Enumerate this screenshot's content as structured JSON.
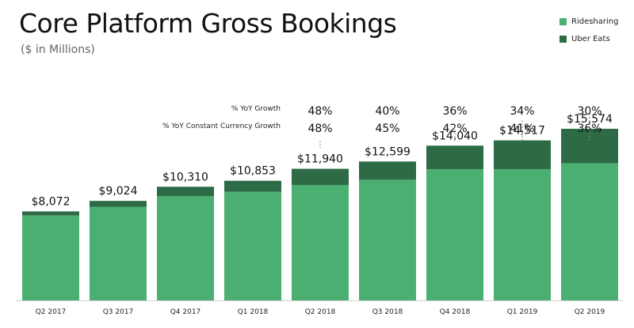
{
  "title": "Core Platform Gross Bookings",
  "subtitle": "($ in Millions)",
  "legend": [
    {
      "label": "Ridesharing",
      "color": "#4caf72"
    },
    {
      "label": "Uber Eats",
      "color": "#2c6b46"
    }
  ],
  "metrics": {
    "yoy_growth_label": "% YoY Growth",
    "yoy_cc_label": "% YoY Constant Currency Growth"
  },
  "chart_data": {
    "type": "bar",
    "stacked": true,
    "categories": [
      "Q2 2017",
      "Q3 2017",
      "Q4 2017",
      "Q1 2018",
      "Q2 2018",
      "Q3 2018",
      "Q4 2018",
      "Q1 2019",
      "Q2 2019"
    ],
    "totals": [
      "$8,072",
      "$9,024",
      "$10,310",
      "$10,853",
      "$11,940",
      "$12,599",
      "$14,040",
      "$14,517",
      "$15,574"
    ],
    "total_values": [
      8072,
      9024,
      10310,
      10853,
      11940,
      12599,
      14040,
      14517,
      15574
    ],
    "series": [
      {
        "name": "Ridesharing",
        "color": "#4caf72",
        "values": [
          7700,
          8500,
          9450,
          9850,
          10450,
          10950,
          11900,
          11900,
          12450
        ]
      },
      {
        "name": "Uber Eats",
        "color": "#2c6b46",
        "values": [
          372,
          524,
          860,
          1003,
          1490,
          1649,
          2140,
          2617,
          3124
        ]
      }
    ],
    "yoy_growth": [
      "",
      "",
      "",
      "",
      "48%",
      "40%",
      "36%",
      "34%",
      "30%"
    ],
    "yoy_constant_currency_growth": [
      "",
      "",
      "",
      "",
      "48%",
      "45%",
      "42%",
      "41%",
      "36%"
    ],
    "ylim": [
      0,
      16500
    ]
  }
}
